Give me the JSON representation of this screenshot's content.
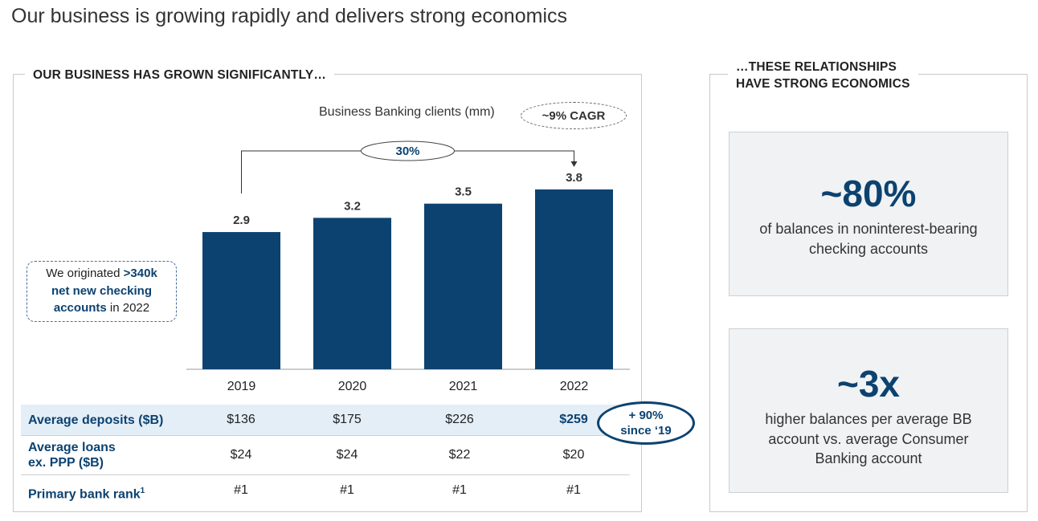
{
  "page_title": "Our business is growing rapidly and delivers strong economics",
  "left_panel": {
    "heading": "OUR BUSINESS HAS GROWN SIGNIFICANTLY…",
    "callout": {
      "prefix": "We originated ",
      "highlight_1": ">340k",
      "highlight_2": "net new checking",
      "highlight_3": "accounts",
      "suffix": " in 2022"
    },
    "table": {
      "rows": [
        {
          "label": "Average deposits ($B)",
          "values": [
            "$136",
            "$175",
            "$226",
            "$259"
          ]
        },
        {
          "label_line1": "Average loans",
          "label_line2": "ex. PPP ($B)",
          "values": [
            "$24",
            "$24",
            "$22",
            "$20"
          ]
        },
        {
          "label": "Primary bank rank",
          "footnote": "1",
          "values": [
            "#1",
            "#1",
            "#1",
            "#1"
          ]
        }
      ],
      "growth_badge": {
        "line1": "+ 90%",
        "line2": "since ‘19"
      }
    }
  },
  "chart_data": {
    "type": "bar",
    "title": "Business Banking clients (mm)",
    "categories": [
      "2019",
      "2020",
      "2021",
      "2022"
    ],
    "values": [
      2.9,
      3.2,
      3.5,
      3.8
    ],
    "value_labels": [
      "2.9",
      "3.2",
      "3.5",
      "3.8"
    ],
    "xlabel": "",
    "ylabel": "",
    "ylim": [
      0,
      3.8
    ],
    "cagr_label": "~9% CAGR",
    "growth_annotation": {
      "from": "2019",
      "to": "2022",
      "label": "30%"
    },
    "bar_color": "#0c4270"
  },
  "right_panel": {
    "heading_line1": "…THESE RELATIONSHIPS",
    "heading_line2": "HAVE STRONG ECONOMICS",
    "stats": [
      {
        "value": "~80%",
        "description": "of balances in noninterest-bearing checking accounts"
      },
      {
        "value": "~3x",
        "description": "higher balances per average BB account vs. average Consumer Banking account"
      }
    ]
  }
}
